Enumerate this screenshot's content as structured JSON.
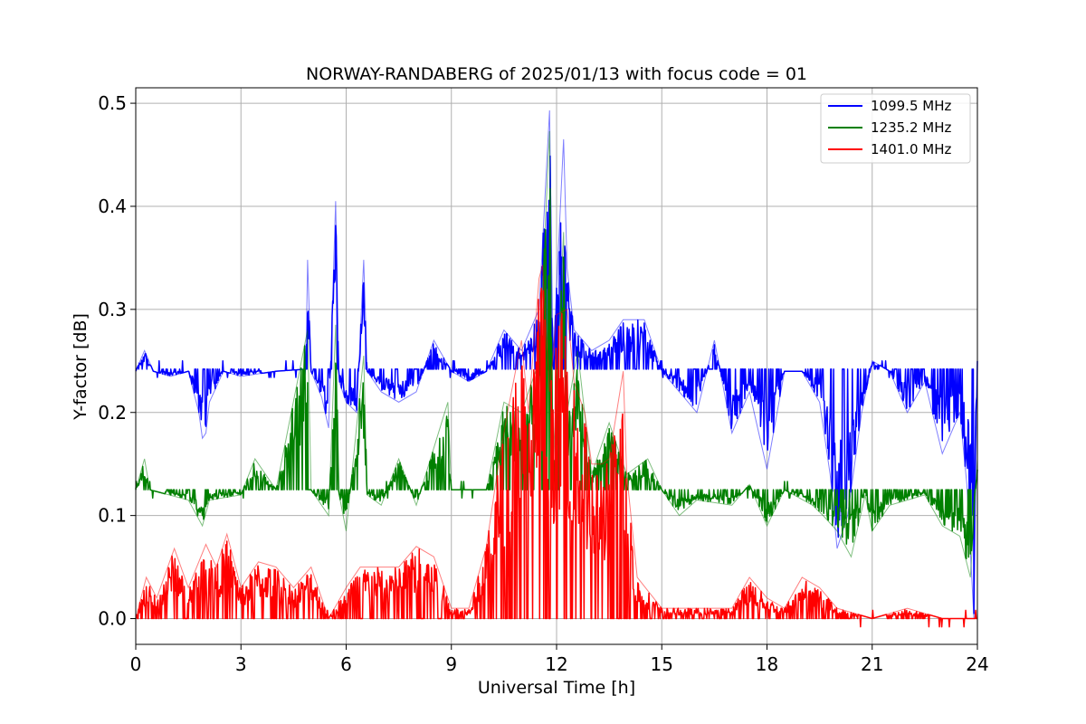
{
  "chart_data": {
    "type": "line",
    "title": "NORWAY-RANDABERG of 2025/01/13 with focus code = 01",
    "xlabel": "Universal Time [h]",
    "ylabel": "Y-factor [dB]",
    "xlim": [
      0,
      24
    ],
    "ylim": [
      -0.025,
      0.515
    ],
    "xticks": [
      0,
      3,
      6,
      9,
      12,
      15,
      18,
      21,
      24
    ],
    "yticks": [
      0.0,
      0.1,
      0.2,
      0.3,
      0.4,
      0.5
    ],
    "ytick_labels": [
      "0.0",
      "0.1",
      "0.2",
      "0.3",
      "0.4",
      "0.5"
    ],
    "grid": true,
    "legend_position": "top-right",
    "series": [
      {
        "name": "1099.5 MHz",
        "color": "#0000ff",
        "baseline": 0.242,
        "points": [
          [
            0,
            0.24
          ],
          [
            0.25,
            0.26
          ],
          [
            0.5,
            0.24
          ],
          [
            1.0,
            0.235
          ],
          [
            1.5,
            0.24
          ],
          [
            1.8,
            0.2
          ],
          [
            1.9,
            0.175
          ],
          [
            2.0,
            0.18
          ],
          [
            2.1,
            0.21
          ],
          [
            2.5,
            0.24
          ],
          [
            3.0,
            0.235
          ],
          [
            4.0,
            0.24
          ],
          [
            4.85,
            0.242
          ],
          [
            4.9,
            0.348
          ],
          [
            5.0,
            0.24
          ],
          [
            5.3,
            0.215
          ],
          [
            5.5,
            0.185
          ],
          [
            5.7,
            0.405
          ],
          [
            5.8,
            0.23
          ],
          [
            6.0,
            0.21
          ],
          [
            6.3,
            0.2
          ],
          [
            6.5,
            0.348
          ],
          [
            6.6,
            0.24
          ],
          [
            7.0,
            0.22
          ],
          [
            7.5,
            0.21
          ],
          [
            8.0,
            0.22
          ],
          [
            8.5,
            0.27
          ],
          [
            9.0,
            0.24
          ],
          [
            9.5,
            0.23
          ],
          [
            10.0,
            0.24
          ],
          [
            10.5,
            0.28
          ],
          [
            11.0,
            0.26
          ],
          [
            11.5,
            0.3
          ],
          [
            11.8,
            0.493
          ],
          [
            11.9,
            0.25
          ],
          [
            12.2,
            0.465
          ],
          [
            12.3,
            0.34
          ],
          [
            12.5,
            0.28
          ],
          [
            13.0,
            0.26
          ],
          [
            13.5,
            0.27
          ],
          [
            13.9,
            0.29
          ],
          [
            14.5,
            0.29
          ],
          [
            15.0,
            0.24
          ],
          [
            15.5,
            0.22
          ],
          [
            16.0,
            0.2
          ],
          [
            16.5,
            0.27
          ],
          [
            17.0,
            0.18
          ],
          [
            17.5,
            0.22
          ],
          [
            18.0,
            0.145
          ],
          [
            18.5,
            0.24
          ],
          [
            19.0,
            0.24
          ],
          [
            19.5,
            0.21
          ],
          [
            19.8,
            0.14
          ],
          [
            20.0,
            0.068
          ],
          [
            20.3,
            0.1
          ],
          [
            20.7,
            0.2
          ],
          [
            21.0,
            0.25
          ],
          [
            21.5,
            0.24
          ],
          [
            22.0,
            0.2
          ],
          [
            22.5,
            0.23
          ],
          [
            23.0,
            0.16
          ],
          [
            23.5,
            0.2
          ],
          [
            23.7,
            0.13
          ],
          [
            23.9,
            0.0
          ],
          [
            24.0,
            0.25
          ]
        ]
      },
      {
        "name": "1235.2 MHz",
        "color": "#008000",
        "baseline": 0.125,
        "points": [
          [
            0,
            0.125
          ],
          [
            0.25,
            0.155
          ],
          [
            0.4,
            0.125
          ],
          [
            1.5,
            0.115
          ],
          [
            1.9,
            0.09
          ],
          [
            2.1,
            0.115
          ],
          [
            3.0,
            0.12
          ],
          [
            3.4,
            0.155
          ],
          [
            4.0,
            0.125
          ],
          [
            4.9,
            0.28
          ],
          [
            5.0,
            0.125
          ],
          [
            5.5,
            0.1
          ],
          [
            5.7,
            0.285
          ],
          [
            5.8,
            0.12
          ],
          [
            6.0,
            0.085
          ],
          [
            6.5,
            0.255
          ],
          [
            6.6,
            0.12
          ],
          [
            7.0,
            0.11
          ],
          [
            7.5,
            0.155
          ],
          [
            8.0,
            0.11
          ],
          [
            8.9,
            0.21
          ],
          [
            9.0,
            0.125
          ],
          [
            10.0,
            0.125
          ],
          [
            10.5,
            0.21
          ],
          [
            11.0,
            0.2
          ],
          [
            11.5,
            0.25
          ],
          [
            11.8,
            0.473
          ],
          [
            11.9,
            0.15
          ],
          [
            12.2,
            0.375
          ],
          [
            12.3,
            0.2
          ],
          [
            12.6,
            0.26
          ],
          [
            13.0,
            0.14
          ],
          [
            13.5,
            0.19
          ],
          [
            14.0,
            0.14
          ],
          [
            14.6,
            0.155
          ],
          [
            15.0,
            0.125
          ],
          [
            15.5,
            0.1
          ],
          [
            16.0,
            0.115
          ],
          [
            17.0,
            0.11
          ],
          [
            17.5,
            0.13
          ],
          [
            18.0,
            0.09
          ],
          [
            18.5,
            0.125
          ],
          [
            19.3,
            0.11
          ],
          [
            19.6,
            0.1
          ],
          [
            20.0,
            0.085
          ],
          [
            20.4,
            0.06
          ],
          [
            20.8,
            0.12
          ],
          [
            21.0,
            0.085
          ],
          [
            21.5,
            0.11
          ],
          [
            22.5,
            0.12
          ],
          [
            23.0,
            0.09
          ],
          [
            23.5,
            0.08
          ],
          [
            23.8,
            0.04
          ],
          [
            24.0,
            0.155
          ]
        ]
      },
      {
        "name": "1401.0 MHz",
        "color": "#ff0000",
        "baseline": 0.0,
        "points": [
          [
            0,
            0.0
          ],
          [
            0.3,
            0.04
          ],
          [
            0.6,
            0.02
          ],
          [
            1.1,
            0.068
          ],
          [
            1.5,
            0.03
          ],
          [
            2.0,
            0.072
          ],
          [
            2.3,
            0.05
          ],
          [
            2.6,
            0.082
          ],
          [
            3.0,
            0.03
          ],
          [
            3.5,
            0.055
          ],
          [
            4.0,
            0.05
          ],
          [
            4.5,
            0.03
          ],
          [
            5.0,
            0.05
          ],
          [
            5.5,
            0.0
          ],
          [
            6.0,
            0.03
          ],
          [
            6.4,
            0.05
          ],
          [
            7.0,
            0.05
          ],
          [
            7.5,
            0.05
          ],
          [
            8.0,
            0.07
          ],
          [
            8.5,
            0.06
          ],
          [
            9.0,
            0.01
          ],
          [
            9.5,
            0.01
          ],
          [
            10.0,
            0.07
          ],
          [
            10.3,
            0.14
          ],
          [
            10.6,
            0.2
          ],
          [
            11.0,
            0.27
          ],
          [
            11.2,
            0.2
          ],
          [
            11.5,
            0.33
          ],
          [
            11.6,
            0.343
          ],
          [
            11.8,
            0.22
          ],
          [
            12.0,
            0.295
          ],
          [
            12.3,
            0.3
          ],
          [
            12.5,
            0.23
          ],
          [
            12.8,
            0.2
          ],
          [
            13.0,
            0.15
          ],
          [
            13.3,
            0.15
          ],
          [
            13.5,
            0.155
          ],
          [
            13.9,
            0.24
          ],
          [
            14.0,
            0.14
          ],
          [
            14.3,
            0.04
          ],
          [
            15.0,
            0.01
          ],
          [
            16.0,
            0.01
          ],
          [
            17.0,
            0.01
          ],
          [
            17.5,
            0.04
          ],
          [
            18.0,
            0.02
          ],
          [
            18.5,
            0.01
          ],
          [
            19.0,
            0.04
          ],
          [
            19.5,
            0.03
          ],
          [
            20.0,
            0.01
          ],
          [
            21.0,
            0.0
          ],
          [
            22.0,
            0.01
          ],
          [
            23.0,
            0.0
          ],
          [
            24.0,
            0.0
          ]
        ]
      }
    ]
  }
}
